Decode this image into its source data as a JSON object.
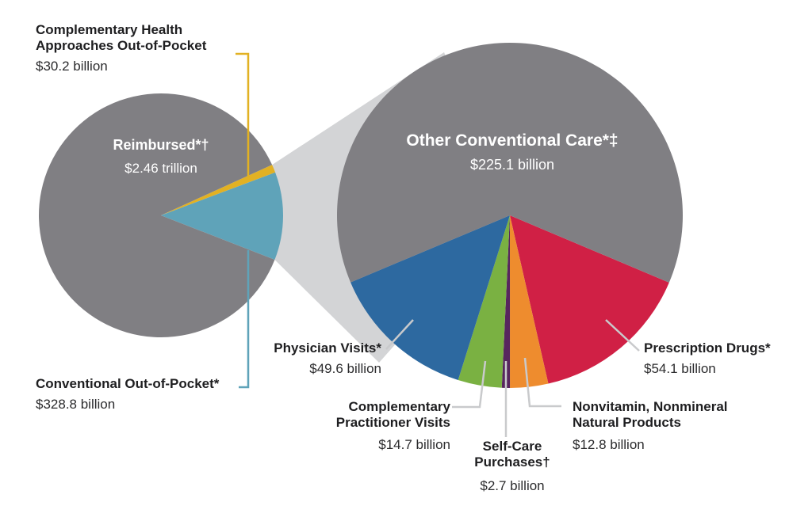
{
  "chart_data": {
    "type": "pie",
    "title": "",
    "description": "Out-of-pocket spending on complementary health approaches versus total U.S. health care spending",
    "legend_position": "none",
    "grid": false,
    "pies": [
      {
        "id": "overall-spending",
        "start_angle_deg": -24.5,
        "slices": [
          {
            "name": "Complementary Health Approaches Out-of-Pocket",
            "name_lines": [
              "Complementary Health",
              "Approaches Out-of-Pocket"
            ],
            "value_label": "$30.2 billion",
            "value_billions": 30.2,
            "color": "#e2b123"
          },
          {
            "name": "Conventional Out-of-Pocket*",
            "name_lines": [
              "Conventional Out-of-Pocket*"
            ],
            "value_label": "$328.8 billion",
            "value_billions": 328.8,
            "color": "#5fa3b9"
          },
          {
            "name": "Reimbursed*†",
            "name_lines": [
              "Reimbursed*†"
            ],
            "value_label": "$2.46 trillion",
            "value_billions": 2460,
            "color": "#807f83"
          }
        ]
      },
      {
        "id": "out-of-pocket-detail",
        "start_angle_deg": 22.9,
        "slices": [
          {
            "name": "Prescription Drugs*",
            "name_lines": [
              "Prescription Drugs*"
            ],
            "value_label": "$54.1 billion",
            "value_billions": 54.1,
            "color": "#d02045"
          },
          {
            "name": "Nonvitamin, Nonmineral Natural Products",
            "name_lines": [
              "Nonvitamin, Nonmineral",
              "Natural Products"
            ],
            "value_label": "$12.8 billion",
            "value_billions": 12.8,
            "color": "#ee8c2e"
          },
          {
            "name": "Self-Care Purchases†",
            "name_lines": [
              "Self-Care",
              "Purchases†"
            ],
            "value_label": "$2.7 billion",
            "value_billions": 2.7,
            "color": "#57265e"
          },
          {
            "name": "Complementary Practitioner Visits",
            "name_lines": [
              "Complementary",
              "Practitioner Visits"
            ],
            "value_label": "$14.7 billion",
            "value_billions": 14.7,
            "color": "#7ab142"
          },
          {
            "name": "Physician Visits*",
            "name_lines": [
              "Physician Visits*"
            ],
            "value_label": "$49.6 billion",
            "value_billions": 49.6,
            "color": "#2d69a0"
          },
          {
            "name": "Other Conventional Care*‡",
            "name_lines": [
              "Other Conventional Care*‡"
            ],
            "value_label": "$225.1 billion",
            "value_billions": 225.1,
            "color": "#807f83"
          }
        ]
      }
    ],
    "colors": {
      "beam": "#d3d4d6",
      "leader_gray": "#c9cacc",
      "leader_yellow": "#e2b123",
      "leader_teal": "#5fa3b9"
    }
  }
}
